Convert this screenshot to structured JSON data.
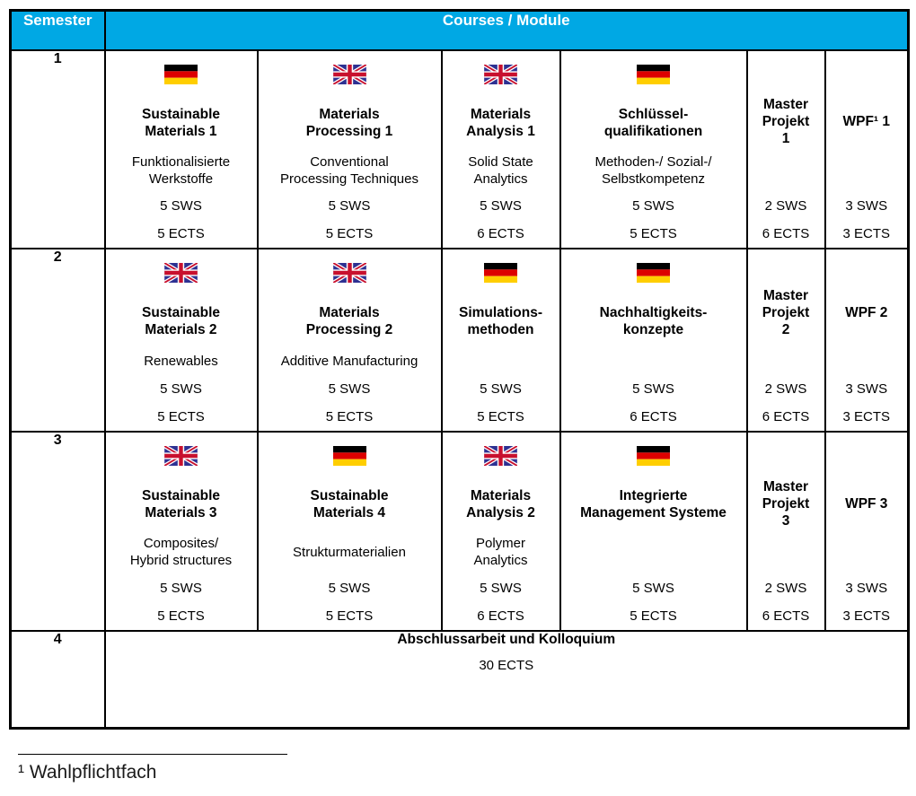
{
  "header": {
    "semester_label": "Semester",
    "courses_label": "Courses / Module"
  },
  "colors": {
    "header_bg": "#00A8E4",
    "header_text": "#FFFFFF",
    "border": "#000000",
    "flag_de": [
      "#000000",
      "#DD0000",
      "#FFCE00"
    ],
    "flag_uk": [
      "#2E3192",
      "#C8102E",
      "#FFFFFF"
    ]
  },
  "semesters": [
    {
      "number": "1",
      "courses": [
        {
          "flag": "de",
          "title_lines": [
            "Sustainable",
            "Materials 1"
          ],
          "subtitle_lines": [
            "Funktionalisierte",
            "Werkstoffe"
          ],
          "sws": "5 SWS",
          "ects": "5 ECTS"
        },
        {
          "flag": "uk",
          "title_lines": [
            "Materials",
            "Processing 1"
          ],
          "subtitle_lines": [
            "Conventional",
            "Processing Techniques"
          ],
          "sws": "5 SWS",
          "ects": "5 ECTS"
        },
        {
          "flag": "uk",
          "title_lines": [
            "Materials",
            "Analysis 1"
          ],
          "subtitle_lines": [
            "Solid State",
            "Analytics"
          ],
          "sws": "5 SWS",
          "ects": "6 ECTS"
        },
        {
          "flag": "de",
          "title_lines": [
            "Schlüssel-",
            "qualifikationen"
          ],
          "subtitle_lines": [
            "Methoden-/ Sozial-/",
            "Selbstkompetenz"
          ],
          "sws": "5 SWS",
          "ects": "5 ECTS"
        },
        {
          "flag": null,
          "title_lines": [
            "Master",
            "Projekt",
            "1"
          ],
          "subtitle_lines": [],
          "sws": "2 SWS",
          "ects": "6 ECTS"
        },
        {
          "flag": null,
          "title_lines": [
            "WPF¹ 1"
          ],
          "subtitle_lines": [],
          "sws": "3 SWS",
          "ects": "3 ECTS"
        }
      ]
    },
    {
      "number": "2",
      "courses": [
        {
          "flag": "uk",
          "title_lines": [
            "Sustainable",
            "Materials 2"
          ],
          "subtitle_lines": [
            "Renewables"
          ],
          "sws": "5 SWS",
          "ects": "5 ECTS"
        },
        {
          "flag": "uk",
          "title_lines": [
            "Materials",
            "Processing 2"
          ],
          "subtitle_lines": [
            "Additive Manufacturing"
          ],
          "sws": "5 SWS",
          "ects": "5 ECTS"
        },
        {
          "flag": "de",
          "title_lines": [
            "Simulations-",
            "methoden"
          ],
          "subtitle_lines": [],
          "sws": "5 SWS",
          "ects": "5 ECTS"
        },
        {
          "flag": "de",
          "title_lines": [
            "Nachhaltigkeits-",
            "konzepte"
          ],
          "subtitle_lines": [],
          "sws": "5 SWS",
          "ects": "6 ECTS"
        },
        {
          "flag": null,
          "title_lines": [
            "Master",
            "Projekt",
            "2"
          ],
          "subtitle_lines": [],
          "sws": "2 SWS",
          "ects": "6 ECTS"
        },
        {
          "flag": null,
          "title_lines": [
            "WPF 2"
          ],
          "subtitle_lines": [],
          "sws": "3 SWS",
          "ects": "3 ECTS"
        }
      ]
    },
    {
      "number": "3",
      "courses": [
        {
          "flag": "uk",
          "title_lines": [
            "Sustainable",
            "Materials 3"
          ],
          "subtitle_lines": [
            "Composites/",
            "Hybrid structures"
          ],
          "sws": "5 SWS",
          "ects": "5 ECTS"
        },
        {
          "flag": "de",
          "title_lines": [
            "Sustainable",
            "Materials 4"
          ],
          "subtitle_lines": [
            "Strukturmaterialien"
          ],
          "sws": "5 SWS",
          "ects": "5 ECTS"
        },
        {
          "flag": "uk",
          "title_lines": [
            "Materials",
            "Analysis 2"
          ],
          "subtitle_lines": [
            "Polymer",
            "Analytics"
          ],
          "sws": "5 SWS",
          "ects": "6 ECTS"
        },
        {
          "flag": "de",
          "title_lines": [
            "Integrierte",
            "Management Systeme"
          ],
          "subtitle_lines": [],
          "sws": "5 SWS",
          "ects": "5 ECTS"
        },
        {
          "flag": null,
          "title_lines": [
            "Master",
            "Projekt",
            "3"
          ],
          "subtitle_lines": [],
          "sws": "2 SWS",
          "ects": "6 ECTS"
        },
        {
          "flag": null,
          "title_lines": [
            "WPF 3"
          ],
          "subtitle_lines": [],
          "sws": "3 SWS",
          "ects": "3 ECTS"
        }
      ]
    }
  ],
  "final_row": {
    "number": "4",
    "title": "Abschlussarbeit und Kolloquium",
    "ects": "30 ECTS"
  },
  "footnote": {
    "text": "¹ Wahlpflichtfach"
  }
}
